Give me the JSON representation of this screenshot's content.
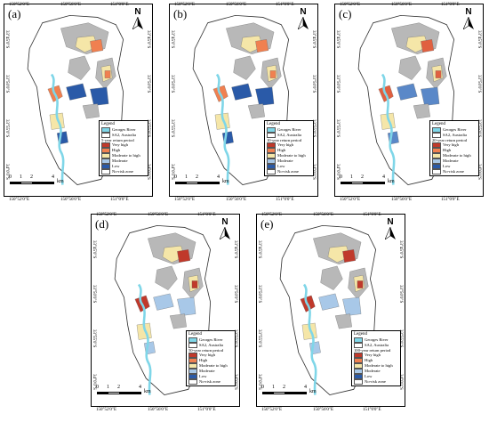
{
  "panels": [
    {
      "label": "(a)",
      "period": "5-year return period"
    },
    {
      "label": "(b)",
      "period": "10-year return period"
    },
    {
      "label": "(c)",
      "period": "20-year return period"
    },
    {
      "label": "(d)",
      "period": "50-year return period"
    },
    {
      "label": "(e)",
      "period": "100-year return period"
    }
  ],
  "north_label": "N",
  "legend": {
    "title": "Legend",
    "river": "Georges River",
    "boundary": "SA2, Australia",
    "classes": [
      {
        "label": "Very high",
        "color": "#c0392b"
      },
      {
        "label": "High",
        "color": "#f08050"
      },
      {
        "label": "Moderate to high",
        "color": "#f5e6a8"
      },
      {
        "label": "Moderate",
        "color": "#a8c8e8"
      },
      {
        "label": "Low",
        "color": "#2a5aa8"
      },
      {
        "label": "No-risk zone",
        "color": "#ffffff"
      }
    ],
    "river_color": "#7fd6e8"
  },
  "scale": {
    "ticks": [
      "0",
      "1",
      "2",
      "4"
    ],
    "unit": "km"
  },
  "axes": {
    "lon_top": [
      "150°52'0\"E",
      "150°56'0\"E",
      "151°0'0\"E"
    ],
    "lon_bottom": [
      "150°52'0\"E",
      "150°56'0\"E",
      "151°0'0\"E"
    ],
    "lat_left": [
      "33°45'0\"S",
      "33°50'0\"S",
      "33°55'0\"S",
      "34°0'0\"S"
    ],
    "lat_right": [
      "33°45'0\"S",
      "33°50'0\"S",
      "33°55'0\"S",
      "34°0'0\"S"
    ]
  }
}
